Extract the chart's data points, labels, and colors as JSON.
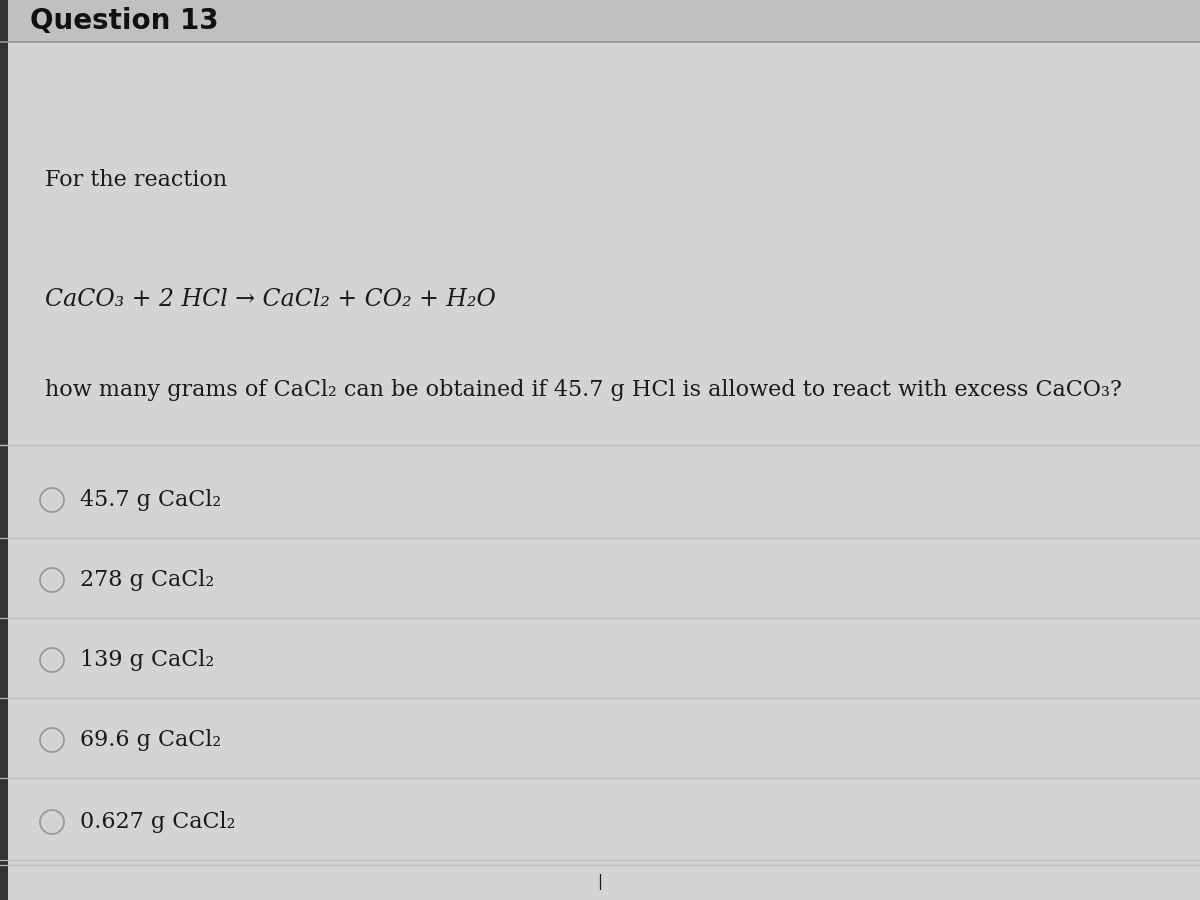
{
  "title": "Question 13",
  "bg_color": "#d4d4d4",
  "content_bg": "#e8e8e8",
  "header_bg": "#c0c0c0",
  "for_the_reaction": "For the reaction",
  "equation": "CaCO₃ + 2 HCl → CaCl₂ + CO₂ + H₂O",
  "question": "how many grams of CaCl₂ can be obtained if 45.7 g HCl is allowed to react with excess CaCO₃?",
  "options": [
    "45.7 g CaCl₂",
    "278 g CaCl₂",
    "139 g CaCl₂",
    "69.6 g CaCl₂",
    "0.627 g CaCl₂"
  ],
  "title_fontsize": 20,
  "text_fontsize": 16,
  "option_fontsize": 16,
  "text_color": "#1a1a1a",
  "title_color": "#111111",
  "line_color": "#bbbbbb",
  "circle_color": "#999999",
  "header_line_color": "#999999",
  "left_edge_color": "#333333",
  "left_edge_width": 8
}
